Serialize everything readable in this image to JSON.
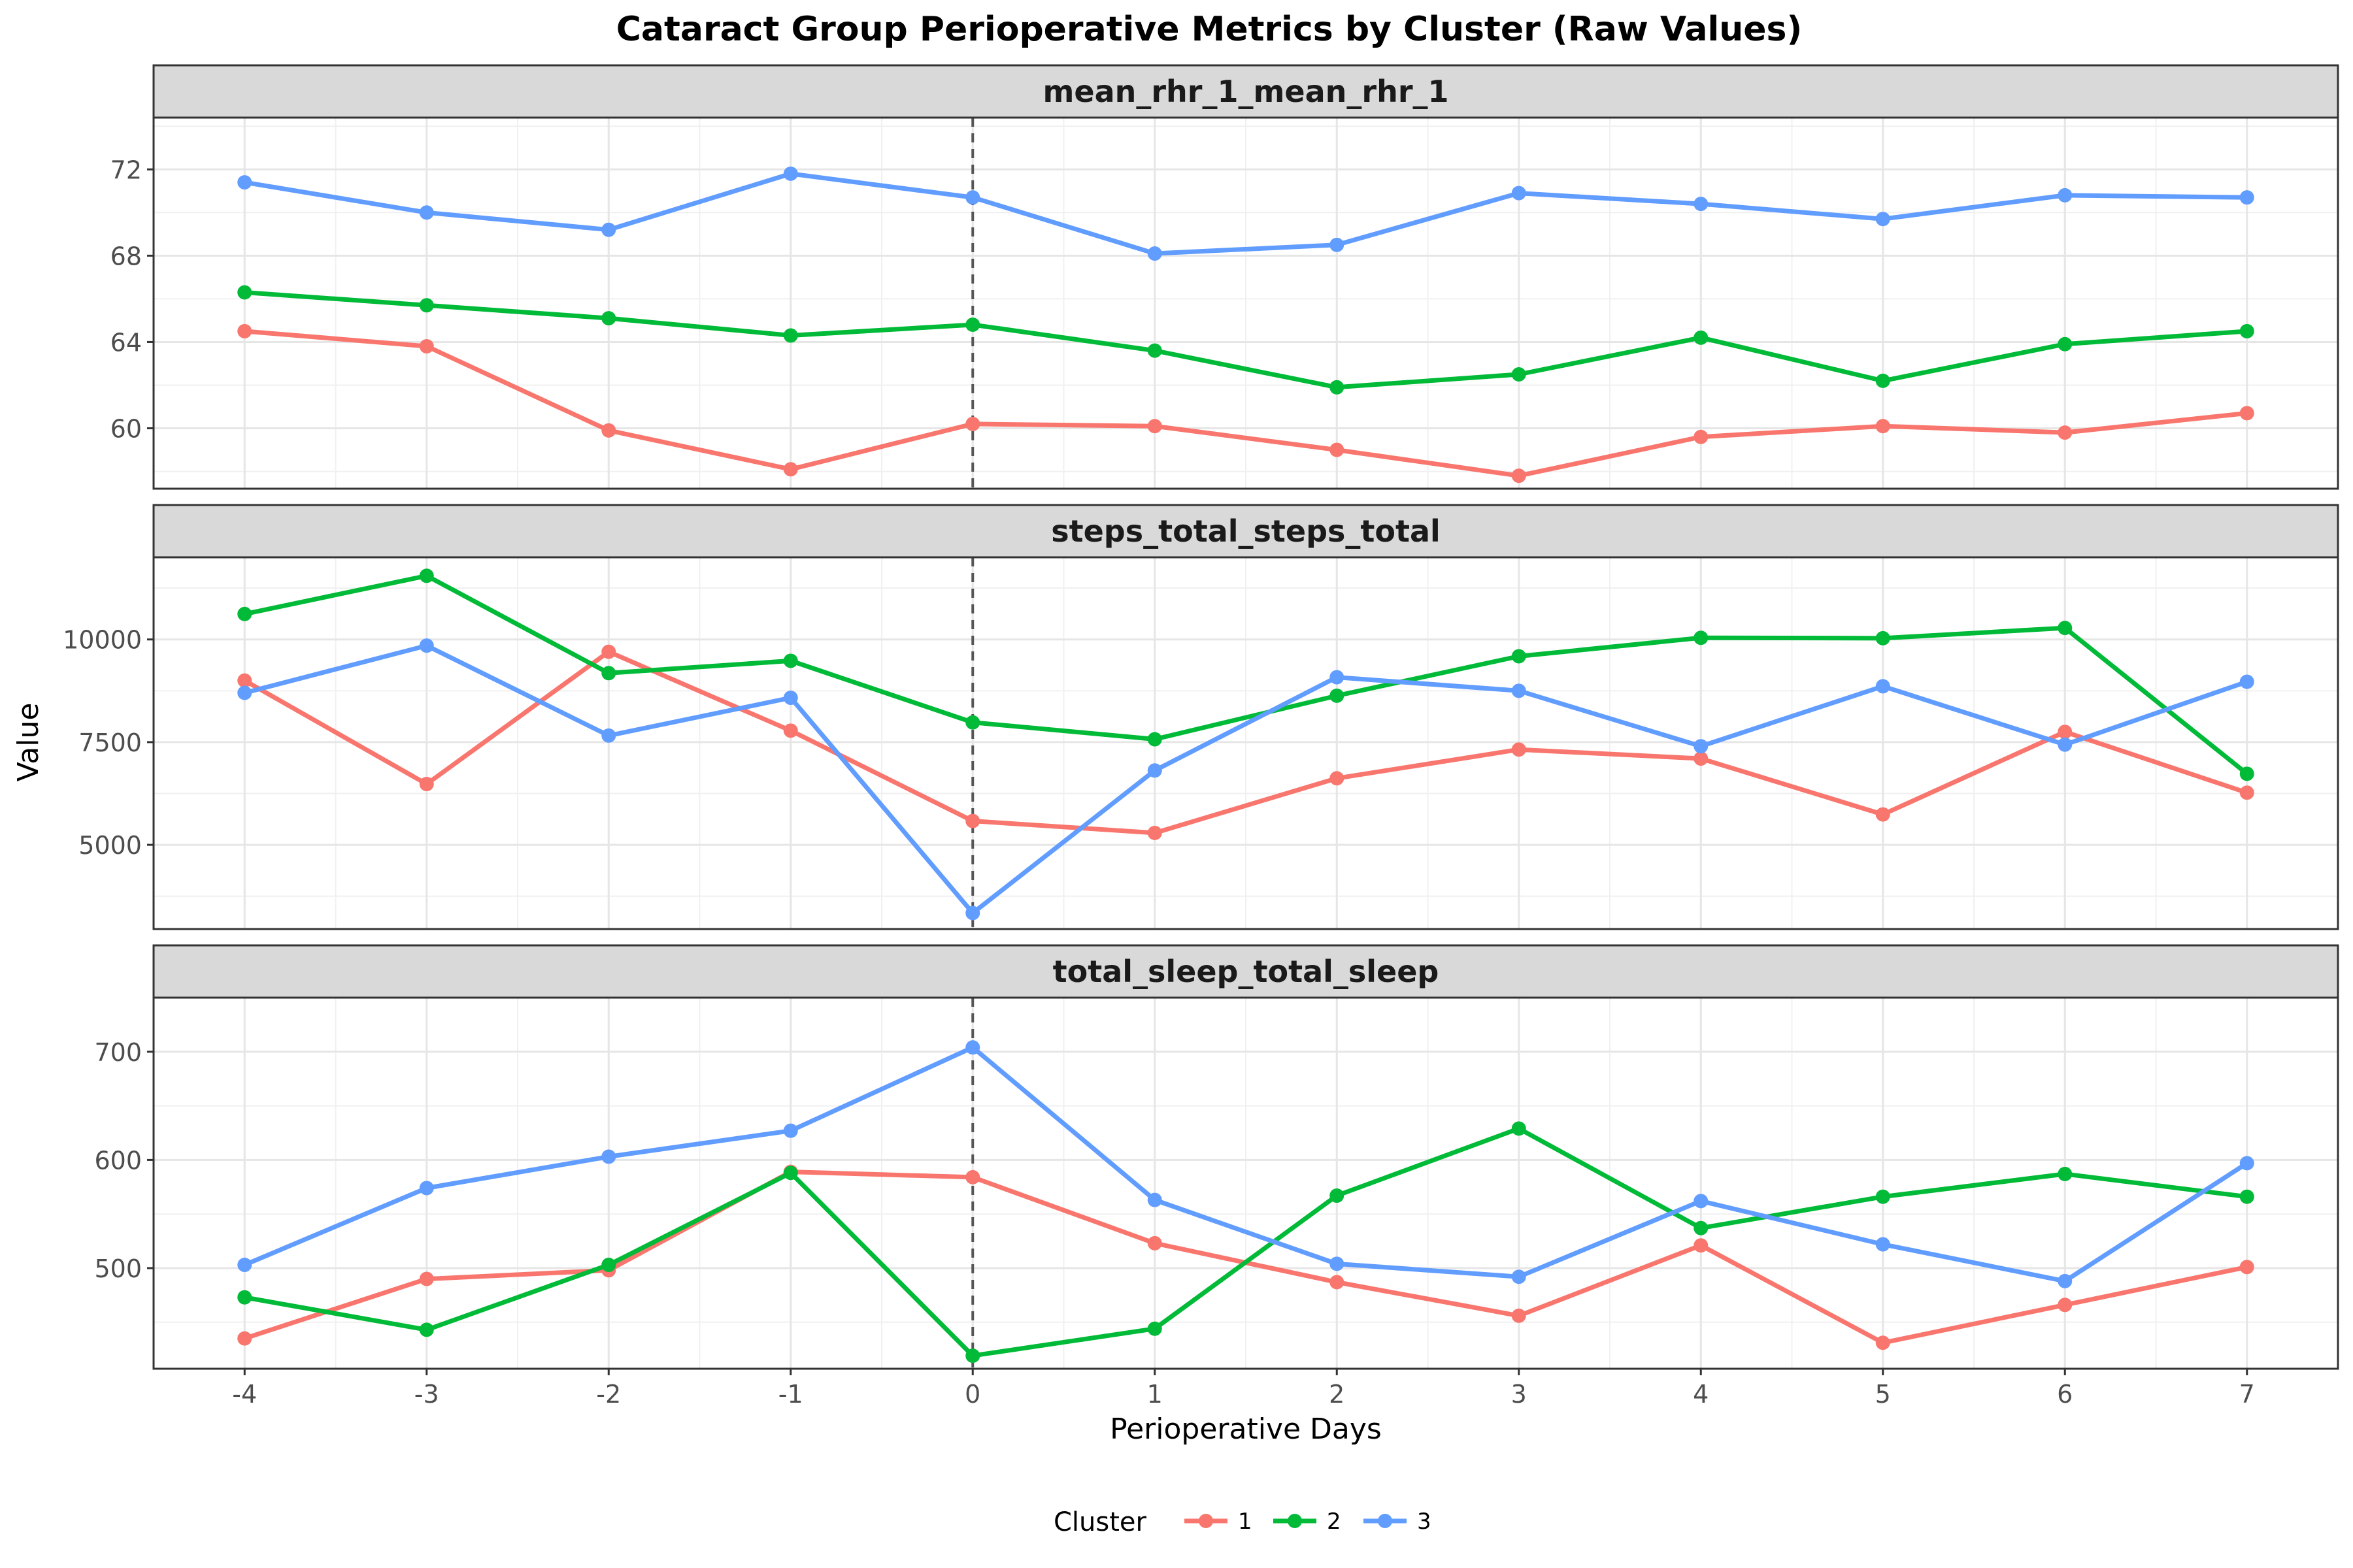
{
  "chart_data": {
    "type": "line",
    "title": "Cataract Group Perioperative Metrics by Cluster (Raw Values)",
    "xlabel": "Perioperative Days",
    "ylabel": "Value",
    "x": [
      -4,
      -3,
      -2,
      -1,
      0,
      1,
      2,
      3,
      4,
      5,
      6,
      7
    ],
    "x_tick_labels": [
      "-4",
      "-3",
      "-2",
      "-1",
      "0",
      "1",
      "2",
      "3",
      "4",
      "5",
      "6",
      "7"
    ],
    "reference_line": {
      "x": 0,
      "style": "dashed"
    },
    "grid": true,
    "legend": {
      "title": "Cluster",
      "position": "bottom",
      "entries": [
        "1",
        "2",
        "3"
      ]
    },
    "colors": {
      "1": "#F8766D",
      "2": "#00BA38",
      "3": "#619CFF"
    },
    "panels": [
      {
        "title": "mean_rhr_1_mean_rhr_1",
        "ylim": [
          57.2,
          74.4
        ],
        "y_ticks": [
          60,
          64,
          68,
          72
        ],
        "y_tick_labels": [
          "60",
          "64",
          "68",
          "72"
        ],
        "series": [
          {
            "name": "1",
            "values": [
              64.5,
              63.8,
              59.9,
              58.1,
              60.2,
              60.1,
              59.0,
              57.8,
              59.6,
              60.1,
              59.8,
              60.7
            ]
          },
          {
            "name": "2",
            "values": [
              66.3,
              65.7,
              65.1,
              64.3,
              64.8,
              63.6,
              61.9,
              62.5,
              64.2,
              62.2,
              63.9,
              64.5
            ]
          },
          {
            "name": "3",
            "values": [
              71.4,
              70.0,
              69.2,
              71.8,
              70.7,
              68.1,
              68.5,
              70.9,
              70.4,
              69.7,
              70.8,
              70.7
            ]
          }
        ]
      },
      {
        "title": "steps_total_steps_total",
        "ylim": [
          2950,
          12000
        ],
        "y_ticks": [
          5000,
          7500,
          10000
        ],
        "y_tick_labels": [
          "5000",
          "7500",
          "10000"
        ],
        "series": [
          {
            "name": "1",
            "values": [
              9000,
              6480,
              9700,
              7780,
              5580,
              5290,
              6620,
              7320,
              7100,
              5740,
              7750,
              6270
            ]
          },
          {
            "name": "2",
            "values": [
              10620,
              11550,
              9180,
              9480,
              7980,
              7570,
              8630,
              9590,
              10040,
              10030,
              10280,
              6730
            ]
          },
          {
            "name": "3",
            "values": [
              8700,
              9850,
              7660,
              8580,
              3340,
              6810,
              9080,
              8750,
              7400,
              8860,
              7440,
              8970
            ]
          }
        ]
      },
      {
        "title": "total_sleep_total_sleep",
        "ylim": [
          407,
          750
        ],
        "y_ticks": [
          500,
          600,
          700
        ],
        "y_tick_labels": [
          "500",
          "600",
          "700"
        ],
        "series": [
          {
            "name": "1",
            "values": [
              435,
              490,
              498,
              589,
              584,
              523,
              487,
              456,
              521,
              431,
              466,
              501
            ]
          },
          {
            "name": "2",
            "values": [
              473,
              443,
              503,
              588,
              419,
              444,
              567,
              629,
              537,
              566,
              587,
              566
            ]
          },
          {
            "name": "3",
            "values": [
              503,
              574,
              603,
              627,
              704,
              563,
              504,
              492,
              562,
              522,
              488,
              597
            ]
          }
        ]
      }
    ]
  }
}
